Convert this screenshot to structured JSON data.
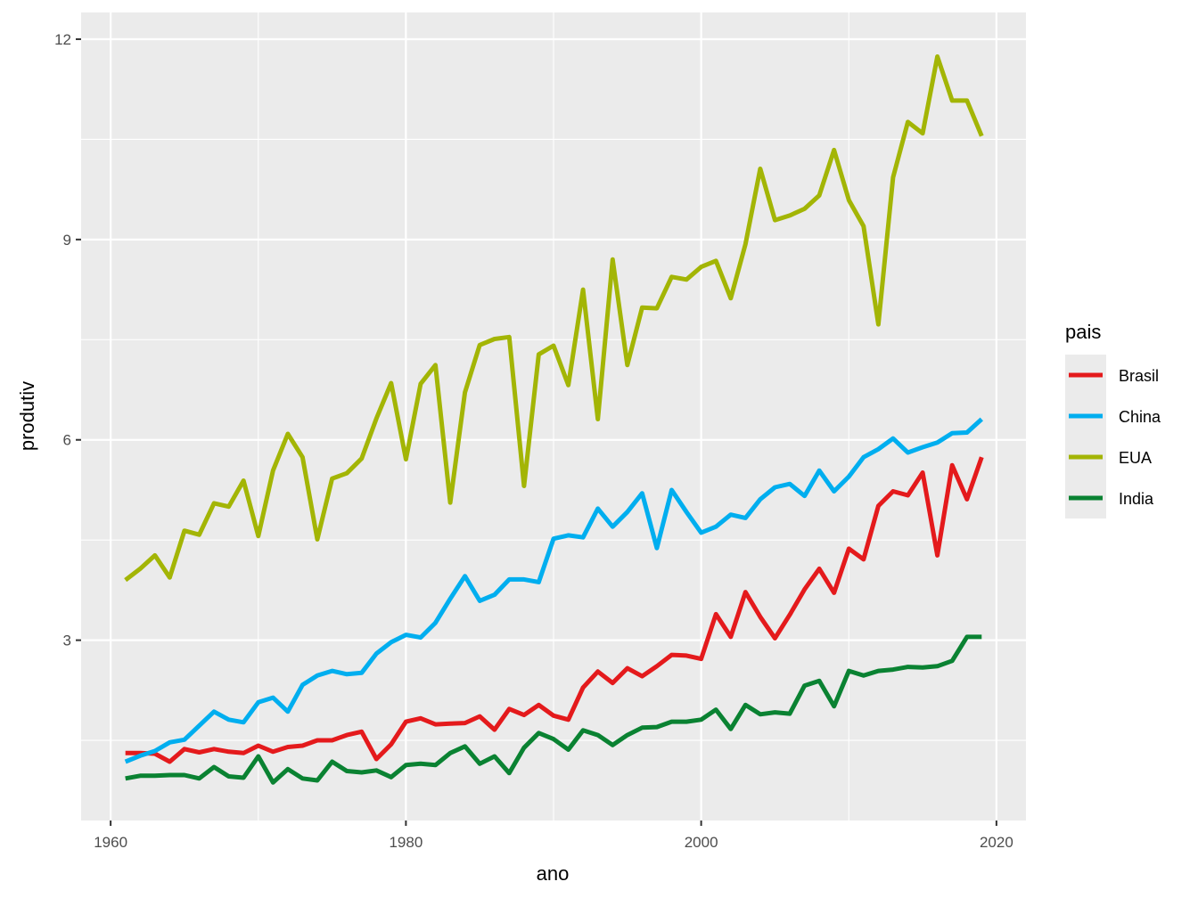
{
  "chart_data": {
    "type": "line",
    "xlabel": "ano",
    "ylabel": "produtiv",
    "xlim": [
      1958,
      2022
    ],
    "ylim": [
      0.3,
      12.4
    ],
    "x_ticks": [
      1960,
      1980,
      2000,
      2020
    ],
    "x_tick_labels": [
      "1960",
      "1980",
      "2000",
      "2020"
    ],
    "y_ticks": [
      3,
      6,
      9,
      12
    ],
    "y_tick_labels": [
      "3",
      "6",
      "9",
      "12"
    ],
    "grid": true,
    "panel_background": "#ebebeb",
    "legend": {
      "title": "pais",
      "position": "right"
    },
    "x": [
      1961,
      1962,
      1963,
      1964,
      1965,
      1966,
      1967,
      1968,
      1969,
      1970,
      1971,
      1972,
      1973,
      1974,
      1975,
      1976,
      1977,
      1978,
      1979,
      1980,
      1981,
      1982,
      1983,
      1984,
      1985,
      1986,
      1987,
      1988,
      1989,
      1990,
      1991,
      1992,
      1993,
      1994,
      1995,
      1996,
      1997,
      1998,
      1999,
      2000,
      2001,
      2002,
      2003,
      2004,
      2005,
      2006,
      2007,
      2008,
      2009,
      2010,
      2011,
      2012,
      2013,
      2014,
      2015,
      2016,
      2017,
      2018,
      2019
    ],
    "series": [
      {
        "name": "Brasil",
        "color": "#e41a1c",
        "values": [
          1.31,
          1.31,
          1.3,
          1.18,
          1.37,
          1.32,
          1.37,
          1.33,
          1.31,
          1.42,
          1.33,
          1.4,
          1.42,
          1.5,
          1.5,
          1.58,
          1.63,
          1.22,
          1.44,
          1.78,
          1.83,
          1.74,
          1.75,
          1.76,
          1.86,
          1.66,
          1.97,
          1.88,
          2.03,
          1.87,
          1.81,
          2.29,
          2.53,
          2.36,
          2.58,
          2.46,
          2.61,
          2.78,
          2.77,
          2.72,
          3.39,
          3.05,
          3.72,
          3.35,
          3.03,
          3.38,
          3.76,
          4.07,
          3.71,
          4.37,
          4.21,
          5.01,
          5.23,
          5.17,
          5.51,
          4.27,
          5.62,
          5.11,
          5.74
        ]
      },
      {
        "name": "China",
        "color": "#00aeef",
        "values": [
          1.18,
          1.27,
          1.34,
          1.47,
          1.51,
          1.72,
          1.93,
          1.81,
          1.77,
          2.07,
          2.14,
          1.93,
          2.33,
          2.47,
          2.54,
          2.49,
          2.51,
          2.8,
          2.97,
          3.08,
          3.04,
          3.26,
          3.62,
          3.96,
          3.59,
          3.68,
          3.91,
          3.91,
          3.87,
          4.52,
          4.57,
          4.54,
          4.97,
          4.7,
          4.92,
          5.2,
          4.38,
          5.25,
          4.92,
          4.61,
          4.7,
          4.88,
          4.83,
          5.11,
          5.29,
          5.34,
          5.16,
          5.54,
          5.23,
          5.45,
          5.74,
          5.86,
          6.02,
          5.81,
          5.89,
          5.96,
          6.1,
          6.11,
          6.31
        ]
      },
      {
        "name": "EUA",
        "color": "#a3b505",
        "values": [
          3.9,
          4.07,
          4.27,
          3.94,
          4.64,
          4.58,
          5.05,
          5.0,
          5.39,
          4.56,
          5.54,
          6.09,
          5.74,
          4.51,
          5.42,
          5.5,
          5.72,
          6.32,
          6.85,
          5.71,
          6.84,
          7.12,
          5.06,
          6.71,
          7.42,
          7.51,
          7.54,
          5.31,
          7.28,
          7.41,
          6.82,
          8.25,
          6.31,
          8.7,
          7.12,
          7.98,
          7.97,
          8.44,
          8.4,
          8.59,
          8.68,
          8.12,
          8.93,
          10.06,
          9.29,
          9.36,
          9.46,
          9.66,
          10.34,
          9.59,
          9.2,
          7.73,
          9.93,
          10.76,
          10.59,
          11.74,
          11.08,
          11.08,
          10.55
        ]
      },
      {
        "name": "India",
        "color": "#0a8232",
        "values": [
          0.93,
          0.97,
          0.97,
          0.98,
          0.98,
          0.93,
          1.1,
          0.96,
          0.94,
          1.26,
          0.87,
          1.07,
          0.93,
          0.9,
          1.18,
          1.04,
          1.02,
          1.05,
          0.95,
          1.13,
          1.15,
          1.13,
          1.31,
          1.41,
          1.15,
          1.26,
          1.01,
          1.39,
          1.61,
          1.52,
          1.36,
          1.65,
          1.58,
          1.43,
          1.58,
          1.69,
          1.7,
          1.78,
          1.78,
          1.81,
          1.96,
          1.67,
          2.03,
          1.89,
          1.92,
          1.9,
          2.32,
          2.39,
          2.01,
          2.54,
          2.47,
          2.54,
          2.56,
          2.6,
          2.59,
          2.61,
          2.69,
          3.05,
          3.05
        ]
      }
    ]
  }
}
